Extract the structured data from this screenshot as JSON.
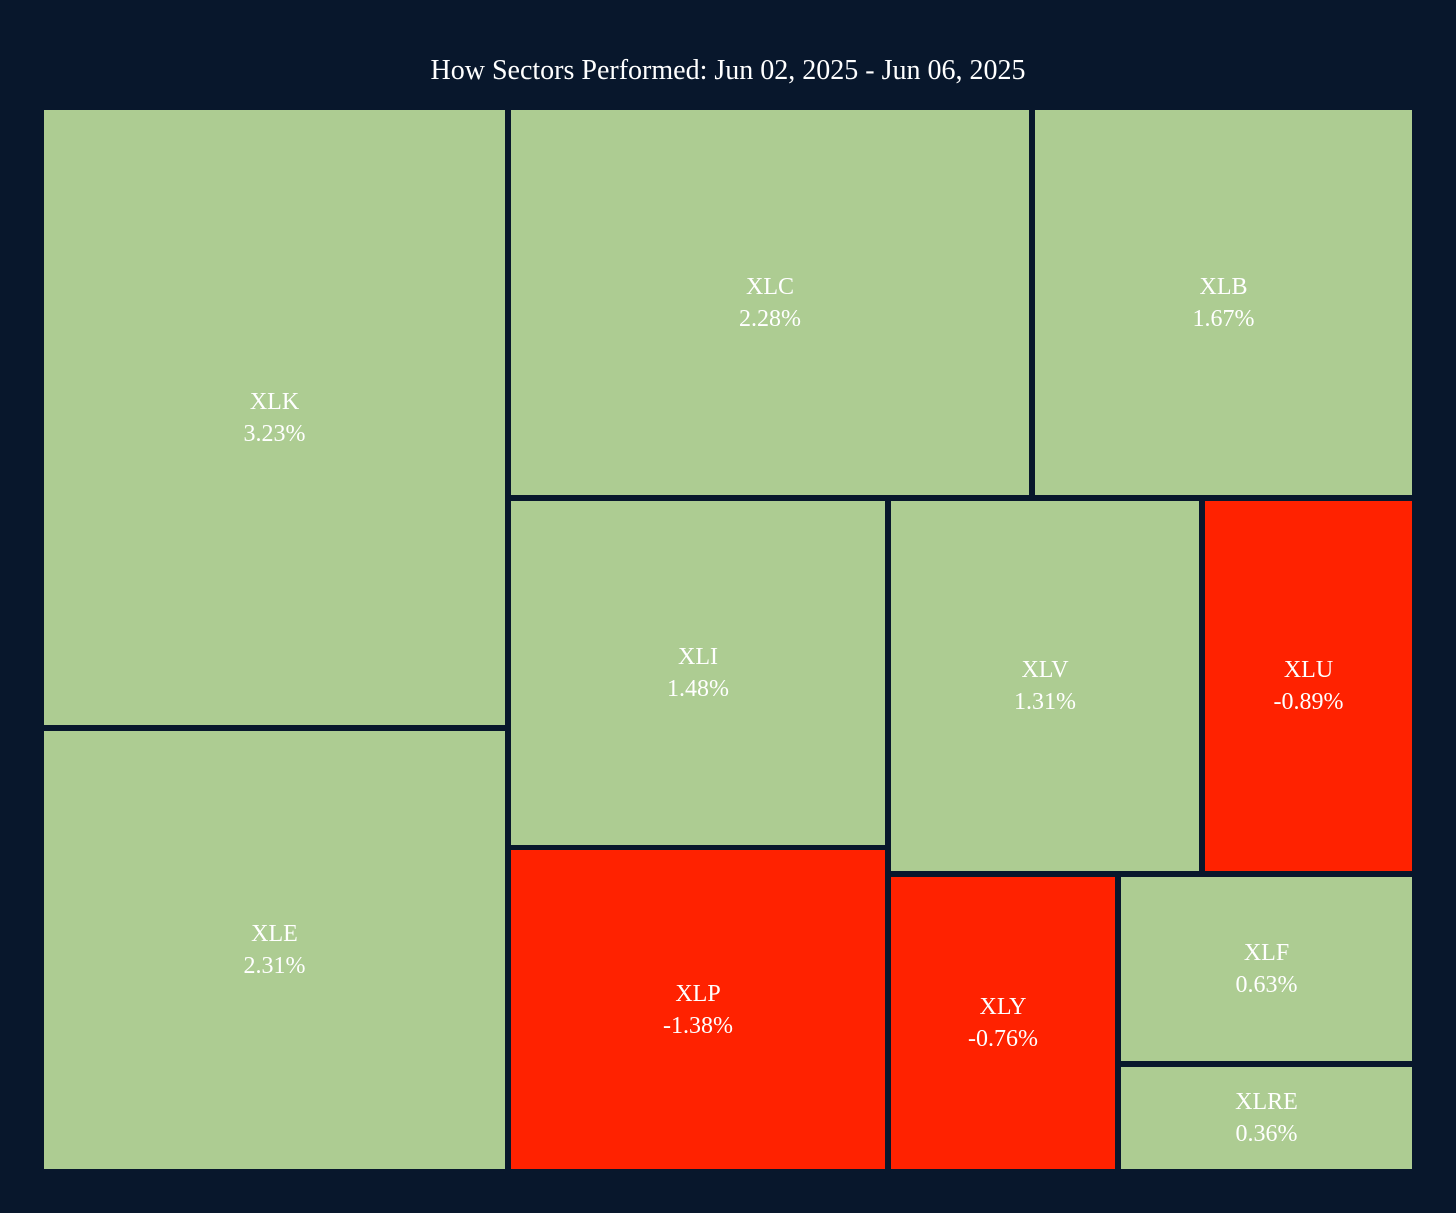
{
  "chart_data": {
    "type": "treemap",
    "title": "How Sectors Performed: Jun 02, 2025 - Jun 06, 2025",
    "positive_color": "#adcc92",
    "negative_color": "#ff2200",
    "tiles": [
      {
        "ticker": "XLK",
        "change": 3.23,
        "change_label": "3.23%"
      },
      {
        "ticker": "XLE",
        "change": 2.31,
        "change_label": "2.31%"
      },
      {
        "ticker": "XLC",
        "change": 2.28,
        "change_label": "2.28%"
      },
      {
        "ticker": "XLB",
        "change": 1.67,
        "change_label": "1.67%"
      },
      {
        "ticker": "XLI",
        "change": 1.48,
        "change_label": "1.48%"
      },
      {
        "ticker": "XLP",
        "change": -1.38,
        "change_label": "-1.38%"
      },
      {
        "ticker": "XLV",
        "change": 1.31,
        "change_label": "1.31%"
      },
      {
        "ticker": "XLU",
        "change": -0.89,
        "change_label": "-0.89%"
      },
      {
        "ticker": "XLY",
        "change": -0.76,
        "change_label": "-0.76%"
      },
      {
        "ticker": "XLF",
        "change": 0.63,
        "change_label": "0.63%"
      },
      {
        "ticker": "XLRE",
        "change": 0.36,
        "change_label": "0.36%"
      }
    ]
  }
}
